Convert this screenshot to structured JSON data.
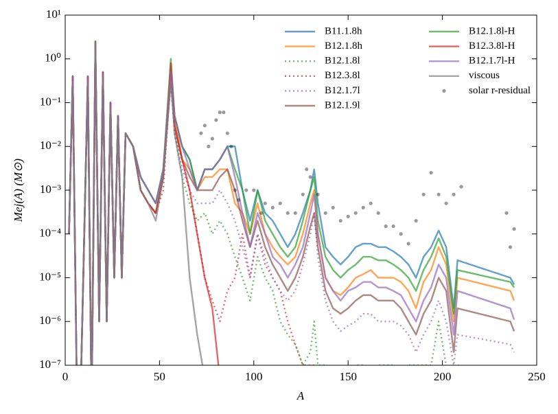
{
  "chart_data": {
    "type": "line",
    "y_scale": "log",
    "legend": "upper right",
    "legend_columns": 2,
    "xlabel": "A",
    "ylabel": "Mej(A) (M⊙)",
    "xlim": [
      0,
      250
    ],
    "xticks": [
      0,
      50,
      100,
      150,
      200,
      250
    ],
    "ylim": [
      1e-07,
      10
    ],
    "yticks": [
      {
        "value": 1e-07,
        "label": "10⁻⁷"
      },
      {
        "value": 1e-06,
        "label": "10⁻⁶"
      },
      {
        "value": 1e-05,
        "label": "10⁻⁵"
      },
      {
        "value": 0.0001,
        "label": "10⁻⁴"
      },
      {
        "value": 0.001,
        "label": "10⁻³"
      },
      {
        "value": 0.01,
        "label": "10⁻²"
      },
      {
        "value": 0.1,
        "label": "10⁻¹"
      },
      {
        "value": 1,
        "label": "10⁰"
      },
      {
        "value": 10,
        "label": "10¹"
      }
    ],
    "x": [
      2,
      4,
      6,
      8,
      12,
      14,
      16,
      18,
      20,
      22,
      24,
      26,
      28,
      30,
      32,
      36,
      40,
      44,
      48,
      52,
      56,
      58,
      62,
      66,
      70,
      74,
      78,
      82,
      86,
      90,
      94,
      98,
      102,
      106,
      110,
      114,
      118,
      122,
      126,
      130,
      132,
      134,
      138,
      142,
      146,
      150,
      154,
      158,
      162,
      166,
      170,
      174,
      178,
      182,
      186,
      190,
      194,
      198,
      202,
      206,
      208,
      236,
      238
    ],
    "series": [
      {
        "name": "B11.1.8h",
        "color": "#1f77b4",
        "style": "solid",
        "values": [
          0.0001,
          0.4,
          1e-07,
          1e-08,
          0.4,
          1e-08,
          2.5,
          1e-06,
          0.5,
          1e-06,
          0.1,
          1e-05,
          0.05,
          1e-05,
          0.02,
          0.01,
          0.002,
          0.001,
          0.0005,
          0.003,
          0.5,
          0.05,
          0.01,
          0.005,
          0.001,
          0.003,
          0.003,
          0.005,
          0.01,
          0.01,
          0.001,
          0.0002,
          0.001,
          0.0003,
          0.0002,
          0.0001,
          5e-05,
          0.0001,
          0.0003,
          0.001,
          0.003,
          0.0005,
          5e-05,
          3e-05,
          2e-05,
          3e-05,
          5e-05,
          6e-05,
          6e-05,
          5e-05,
          5e-05,
          4e-05,
          3e-05,
          2e-05,
          1e-05,
          3e-05,
          5e-05,
          0.00012,
          5e-05,
          2e-06,
          2.5e-05,
          1e-05,
          7e-06
        ]
      },
      {
        "name": "B12.1.8h",
        "color": "#ff7f0e",
        "style": "solid",
        "values": [
          0.0001,
          0.4,
          1e-07,
          1e-08,
          0.4,
          1e-08,
          2,
          1e-06,
          0.5,
          1e-06,
          0.1,
          1e-05,
          0.05,
          1e-05,
          0.02,
          0.01,
          0.001,
          0.0005,
          0.0003,
          0.002,
          0.4,
          0.05,
          0.005,
          0.003,
          0.001,
          0.002,
          0.002,
          0.003,
          0.003,
          0.0005,
          0.0003,
          0.0001,
          0.0005,
          0.0001,
          5e-05,
          3e-05,
          2e-05,
          3e-05,
          0.0001,
          0.0005,
          0.001,
          0.0001,
          1e-05,
          5e-06,
          4e-06,
          6e-06,
          1e-05,
          1.2e-05,
          1.5e-05,
          1e-05,
          1e-05,
          1e-05,
          8e-06,
          5e-06,
          2e-06,
          8e-06,
          1.5e-05,
          5e-05,
          2e-05,
          1e-06,
          1e-05,
          5e-06,
          3e-06
        ]
      },
      {
        "name": "B12.1.8l",
        "color": "#2ca02c",
        "style": "dotted",
        "values": [
          0.0001,
          0.4,
          1e-07,
          1e-08,
          0.4,
          1e-08,
          2,
          1e-06,
          0.5,
          1e-06,
          0.1,
          1e-05,
          0.05,
          1e-05,
          0.02,
          0.01,
          0.001,
          0.0005,
          0.0003,
          0.002,
          0.5,
          0.02,
          0.002,
          0.0005,
          0.0002,
          0.0003,
          0.0001,
          0.0002,
          0.0001,
          3e-05,
          1e-05,
          3e-06,
          3e-05,
          1e-05,
          5e-06,
          1e-06,
          5e-07,
          3e-07,
          1e-07,
          2e-07,
          1e-06,
          1e-07,
          1e-07,
          5e-08,
          1e-07,
          3e-08,
          1e-07,
          1e-07,
          5e-08,
          1e-07,
          1e-07,
          1e-07,
          5e-08,
          1e-07,
          1e-07,
          1e-07,
          1e-07,
          1e-06,
          1e-07,
          5e-08,
          1e-07,
          5e-08,
          5e-08
        ]
      },
      {
        "name": "B12.3.8l",
        "color": "#d62728",
        "style": "dotted",
        "values": [
          0.0001,
          0.4,
          1e-07,
          1e-08,
          0.4,
          1e-08,
          2,
          1e-06,
          0.5,
          1e-06,
          0.1,
          1e-05,
          0.05,
          1e-05,
          0.02,
          0.01,
          0.001,
          0.0005,
          0.0003,
          0.001,
          0.5,
          0.02,
          0.005,
          0.001,
          0.0001,
          1e-05,
          3e-06,
          1e-06,
          5e-06,
          1e-05,
          0.0001,
          1e-05,
          0.0001,
          2e-05,
          1e-05,
          5e-06,
          1e-06,
          3e-07,
          1e-07,
          1e-07,
          1e-07,
          5e-08,
          null,
          null,
          null,
          null,
          null,
          null,
          null,
          null,
          null,
          null,
          null,
          null,
          null,
          null,
          null,
          null,
          null,
          null,
          null,
          null,
          null
        ]
      },
      {
        "name": "B12.1.7l",
        "color": "#9467bd",
        "style": "dotted",
        "values": [
          0.0001,
          0.4,
          1e-07,
          1e-08,
          0.4,
          1e-08,
          2,
          1e-06,
          0.5,
          1e-06,
          0.1,
          1e-05,
          0.05,
          1e-05,
          0.02,
          0.01,
          0.001,
          0.0005,
          0.0003,
          0.002,
          0.3,
          0.02,
          0.003,
          0.001,
          0.0005,
          0.0005,
          0.0005,
          0.001,
          0.0005,
          0.0002,
          5e-05,
          1e-05,
          0.0001,
          3e-05,
          1e-05,
          5e-06,
          3e-06,
          5e-06,
          2e-05,
          0.0001,
          0.0003,
          3e-05,
          3e-06,
          1e-06,
          6e-07,
          8e-07,
          1e-06,
          1.5e-06,
          1.5e-06,
          1e-06,
          1e-06,
          1e-06,
          8e-07,
          5e-07,
          2e-07,
          5e-07,
          1e-06,
          3e-06,
          1e-06,
          1e-07,
          5e-07,
          3e-07,
          2e-07
        ]
      },
      {
        "name": "B12.1.9l",
        "color": "#8c564b",
        "style": "solid",
        "values": [
          0.0001,
          0.4,
          1e-07,
          1e-08,
          0.4,
          1e-08,
          2,
          1e-06,
          0.5,
          1e-06,
          0.1,
          1e-05,
          0.05,
          1e-05,
          0.02,
          0.01,
          0.001,
          0.0005,
          0.0003,
          0.002,
          0.4,
          0.03,
          0.005,
          0.002,
          0.001,
          0.001,
          0.001,
          0.002,
          0.003,
          0.001,
          0.0002,
          5e-05,
          0.0002,
          5e-05,
          2e-05,
          1e-05,
          5e-06,
          1e-05,
          3e-05,
          0.00015,
          0.0003,
          5e-05,
          5e-06,
          2e-06,
          1.5e-06,
          2e-06,
          3e-06,
          4e-06,
          4e-06,
          3e-06,
          3e-06,
          3e-06,
          2e-06,
          1e-06,
          5e-07,
          1.5e-06,
          3e-06,
          1e-05,
          5e-06,
          2e-07,
          2e-06,
          1e-06,
          6e-07
        ]
      },
      {
        "name": "B12.1.8l-H",
        "color": "#2ca02c",
        "style": "solid",
        "values": [
          0.0001,
          0.4,
          1e-07,
          1e-08,
          0.4,
          1e-08,
          2.5,
          1e-06,
          0.5,
          1e-06,
          0.1,
          1e-05,
          0.05,
          1e-05,
          0.02,
          0.01,
          0.002,
          0.001,
          0.0005,
          0.003,
          1,
          0.05,
          0.01,
          0.005,
          0.001,
          0.003,
          0.003,
          0.005,
          0.01,
          0.003,
          0.001,
          0.0001,
          0.001,
          0.0002,
          0.0001,
          5e-05,
          3e-05,
          5e-05,
          0.0002,
          0.001,
          0.002,
          0.0002,
          3e-05,
          1.5e-05,
          1e-05,
          1.5e-05,
          2e-05,
          3e-05,
          3e-05,
          2.5e-05,
          2.5e-05,
          2e-05,
          1.5e-05,
          1e-05,
          5e-06,
          1.5e-05,
          3e-05,
          8e-05,
          3e-05,
          1.5e-06,
          1.5e-05,
          8e-06,
          6e-06
        ]
      },
      {
        "name": "B12.3.8l-H",
        "color": "#d62728",
        "style": "solid",
        "values": [
          0.0001,
          0.4,
          1e-07,
          1e-08,
          0.4,
          1e-08,
          2.5,
          1e-06,
          0.5,
          1e-06,
          0.1,
          1e-05,
          0.05,
          1e-05,
          0.02,
          0.01,
          0.001,
          0.0005,
          0.0003,
          0.002,
          0.8,
          0.03,
          0.005,
          0.001,
          0.0001,
          1e-05,
          2e-06,
          5e-08,
          null,
          null,
          null,
          null,
          null,
          null,
          null,
          null,
          null,
          null,
          null,
          null,
          null,
          null,
          null,
          null,
          null,
          null,
          null,
          null,
          null,
          null,
          null,
          null,
          null,
          null,
          null,
          null,
          null,
          null,
          null,
          null,
          null,
          null,
          null
        ]
      },
      {
        "name": "B12.1.7l-H",
        "color": "#9467bd",
        "style": "solid",
        "values": [
          0.0001,
          0.4,
          1e-07,
          1e-08,
          0.4,
          1e-08,
          2,
          1e-06,
          0.5,
          1e-06,
          0.1,
          1e-05,
          0.05,
          1e-05,
          0.02,
          0.01,
          0.002,
          0.001,
          0.0005,
          0.003,
          0.5,
          0.05,
          0.01,
          0.003,
          0.001,
          0.003,
          0.003,
          0.005,
          0.01,
          0.002,
          0.0003,
          5e-05,
          0.0003,
          0.0001,
          3e-05,
          2e-05,
          1e-05,
          2e-05,
          5e-05,
          0.0003,
          0.0008,
          0.0001,
          1e-05,
          5e-06,
          3e-06,
          5e-06,
          6e-06,
          8e-06,
          8e-06,
          6e-06,
          6e-06,
          5e-06,
          4e-06,
          2e-06,
          1e-06,
          3e-06,
          6e-06,
          2e-05,
          1e-05,
          5e-07,
          5e-06,
          2e-06,
          1.1e-06
        ]
      },
      {
        "name": "viscous",
        "color": "#7f7f7f",
        "style": "solid",
        "values": [
          0.0001,
          0.3,
          1e-07,
          1e-08,
          0.3,
          1e-08,
          2.5,
          1e-06,
          0.4,
          1e-06,
          0.08,
          1e-05,
          0.04,
          1e-05,
          0.02,
          0.01,
          0.001,
          0.0005,
          0.0002,
          0.002,
          0.3,
          0.02,
          0.002,
          1e-05,
          5e-07,
          5e-08,
          null,
          null,
          null,
          null,
          null,
          null,
          null,
          null,
          null,
          null,
          null,
          null,
          null,
          null,
          null,
          null,
          null,
          null,
          null,
          null,
          null,
          null,
          null,
          null,
          null,
          null,
          null,
          null,
          null,
          null,
          null,
          null,
          null,
          null,
          null,
          null,
          null
        ]
      },
      {
        "name": "solar r-residual",
        "color": "#000000",
        "type": "scatter",
        "x": [
          72,
          74,
          76,
          78,
          80,
          82,
          84,
          86,
          88,
          90,
          92,
          96,
          100,
          104,
          106,
          110,
          114,
          118,
          122,
          126,
          128,
          130,
          134,
          138,
          142,
          146,
          150,
          154,
          158,
          162,
          166,
          170,
          174,
          178,
          182,
          186,
          190,
          194,
          198,
          202,
          206,
          210,
          234,
          236,
          238
        ],
        "values": [
          0.02,
          0.03,
          0.01,
          0.015,
          0.04,
          0.06,
          0.06,
          0.02,
          0.01,
          0.001,
          0.0006,
          0.001,
          0.001,
          0.0003,
          0.0005,
          0.0004,
          0.0005,
          0.0003,
          0.0003,
          0.0008,
          0.003,
          0.002,
          0.0008,
          0.0003,
          0.0004,
          0.0002,
          0.00025,
          0.0003,
          0.0004,
          0.0005,
          0.0003,
          0.00015,
          0.00015,
          0.0001,
          6e-05,
          0.0002,
          0.0008,
          0.0025,
          0.0008,
          0.0005,
          0.0008,
          0.0012,
          0.0003,
          5e-05,
          0.00013
        ]
      }
    ]
  }
}
